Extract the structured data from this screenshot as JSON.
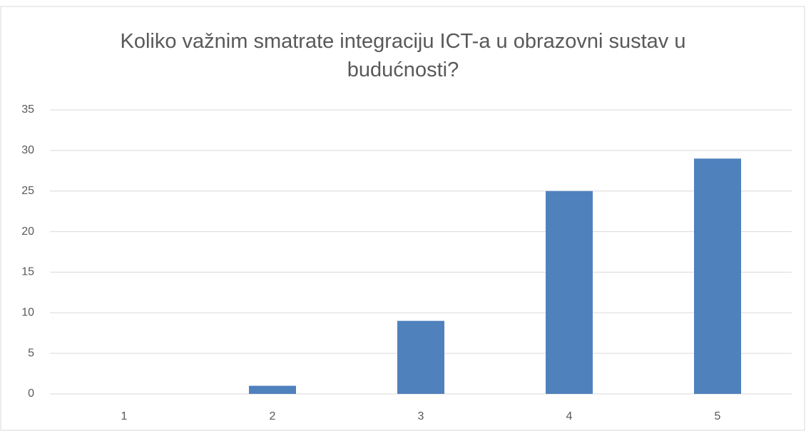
{
  "chart_data": {
    "type": "bar",
    "title": "Koliko važnim smatrate integraciju ICT-a u obrazovni sustav u budućnosti?",
    "categories": [
      "1",
      "2",
      "3",
      "4",
      "5"
    ],
    "values": [
      0,
      1,
      9,
      25,
      29
    ],
    "color": "#4f81bd",
    "ylim": [
      0,
      35
    ],
    "yticks": [
      0,
      5,
      10,
      15,
      20,
      25,
      30,
      35
    ],
    "grid": true
  }
}
